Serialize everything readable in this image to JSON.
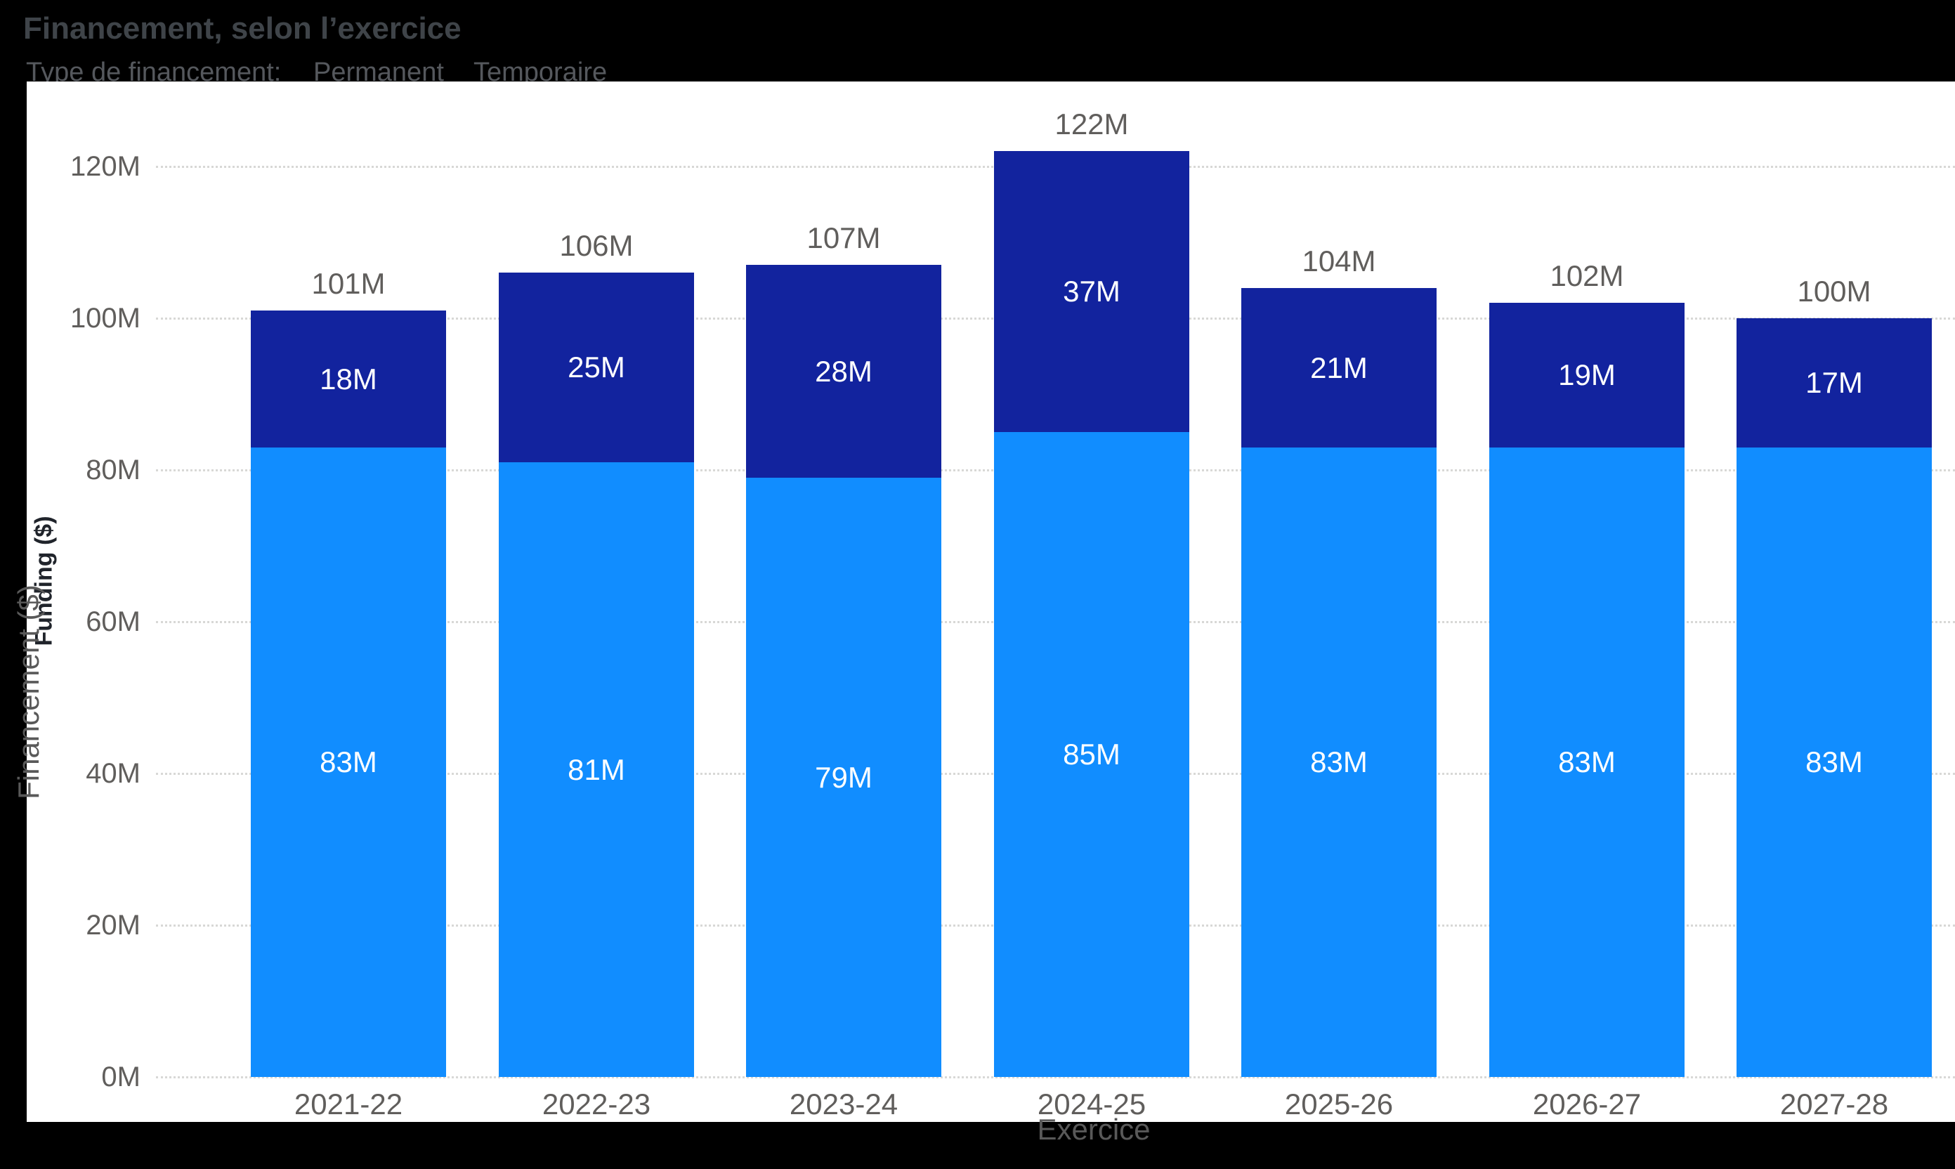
{
  "title": {
    "text": "Financement, selon l’exercice"
  },
  "legend": {
    "label": "Type de financement:",
    "items": [
      {
        "name": "Permanent",
        "color": "#118DFF"
      },
      {
        "name": "Temporaire",
        "color": "#12239E"
      }
    ]
  },
  "chart_data": {
    "type": "bar",
    "stacked": true,
    "title": "Financement, selon l’exercice",
    "categories": [
      "2021-22",
      "2022-23",
      "2023-24",
      "2024-25",
      "2025-26",
      "2026-27",
      "2027-28"
    ],
    "series": [
      {
        "name": "Permanent",
        "color": "#118DFF",
        "values": [
          83,
          81,
          79,
          85,
          83,
          83,
          83
        ],
        "labels": [
          "83M",
          "81M",
          "79M",
          "85M",
          "83M",
          "83M",
          "83M"
        ]
      },
      {
        "name": "Temporaire",
        "color": "#12239E",
        "values": [
          18,
          25,
          28,
          37,
          21,
          19,
          17
        ],
        "labels": [
          "18M",
          "25M",
          "28M",
          "37M",
          "21M",
          "19M",
          "17M"
        ]
      }
    ],
    "totals": [
      101,
      106,
      107,
      122,
      104,
      102,
      100
    ],
    "total_labels": [
      "101M",
      "106M",
      "107M",
      "122M",
      "104M",
      "102M",
      "100M"
    ],
    "xlabel": "Exercice",
    "ylabel_fr": "Financement ($)",
    "ylabel_en": "Funding ($)",
    "yticks": [
      0,
      20,
      40,
      60,
      80,
      100,
      120
    ],
    "ytick_labels": [
      "0M",
      "20M",
      "40M",
      "60M",
      "80M",
      "100M",
      "120M"
    ],
    "ylim": [
      0,
      130
    ],
    "grid": "dotted horizontal",
    "legend_position": "top",
    "colors": {
      "background": "#000000",
      "card": "#FFFFFF",
      "grid": "#D8D8D6",
      "axis_text": "#605E5C",
      "data_label": "#FFFFFF",
      "total_label": "#605E5C"
    }
  }
}
